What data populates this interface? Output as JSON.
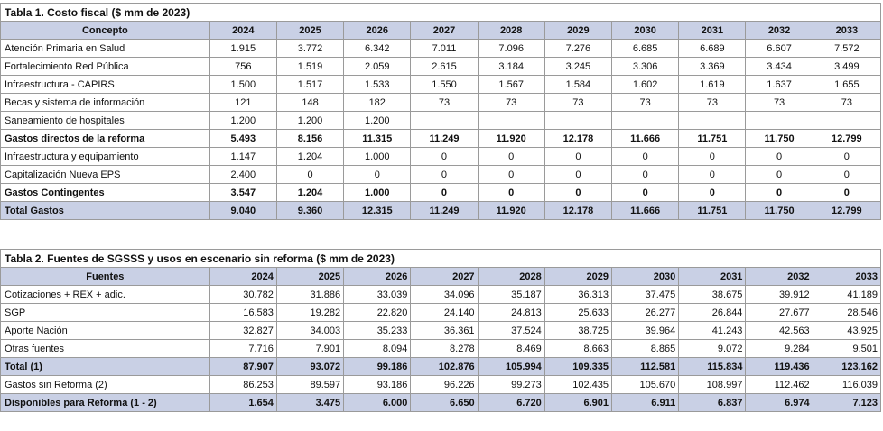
{
  "table1": {
    "title": "Tabla 1. Costo fiscal ($ mm de 2023)",
    "concept_header": "Concepto",
    "years": [
      "2024",
      "2025",
      "2026",
      "2027",
      "2028",
      "2029",
      "2030",
      "2031",
      "2032",
      "2033"
    ],
    "rows": [
      {
        "label": "Atención Primaria en Salud",
        "values": [
          "1.915",
          "3.772",
          "6.342",
          "7.011",
          "7.096",
          "7.276",
          "6.685",
          "6.689",
          "6.607",
          "7.572"
        ],
        "style": "normal"
      },
      {
        "label": "Fortalecimiento Red Pública",
        "values": [
          "756",
          "1.519",
          "2.059",
          "2.615",
          "3.184",
          "3.245",
          "3.306",
          "3.369",
          "3.434",
          "3.499"
        ],
        "style": "normal"
      },
      {
        "label": "Infraestructura - CAPIRS",
        "values": [
          "1.500",
          "1.517",
          "1.533",
          "1.550",
          "1.567",
          "1.584",
          "1.602",
          "1.619",
          "1.637",
          "1.655"
        ],
        "style": "normal"
      },
      {
        "label": "Becas y sistema de información",
        "values": [
          "121",
          "148",
          "182",
          "73",
          "73",
          "73",
          "73",
          "73",
          "73",
          "73"
        ],
        "style": "normal"
      },
      {
        "label": "Saneamiento de hospitales",
        "values": [
          "1.200",
          "1.200",
          "1.200",
          "",
          "",
          "",
          "",
          "",
          "",
          ""
        ],
        "style": "normal"
      },
      {
        "label": "Gastos directos de la reforma",
        "values": [
          "5.493",
          "8.156",
          "11.315",
          "11.249",
          "11.920",
          "12.178",
          "11.666",
          "11.751",
          "11.750",
          "12.799"
        ],
        "style": "bold"
      },
      {
        "label": "Infraestructura y equipamiento",
        "values": [
          "1.147",
          "1.204",
          "1.000",
          "0",
          "0",
          "0",
          "0",
          "0",
          "0",
          "0"
        ],
        "style": "normal"
      },
      {
        "label": "Capitalización Nueva EPS",
        "values": [
          "2.400",
          "0",
          "0",
          "0",
          "0",
          "0",
          "0",
          "0",
          "0",
          "0"
        ],
        "style": "normal"
      },
      {
        "label": "Gastos Contingentes",
        "values": [
          "3.547",
          "1.204",
          "1.000",
          "0",
          "0",
          "0",
          "0",
          "0",
          "0",
          "0"
        ],
        "style": "bold"
      },
      {
        "label": "Total Gastos",
        "values": [
          "9.040",
          "9.360",
          "12.315",
          "11.249",
          "11.920",
          "12.178",
          "11.666",
          "11.751",
          "11.750",
          "12.799"
        ],
        "style": "total"
      }
    ]
  },
  "table2": {
    "title": "Tabla 2. Fuentes de SGSSS y usos en escenario sin reforma ($ mm de 2023)",
    "concept_header": "Fuentes",
    "years": [
      "2024",
      "2025",
      "2026",
      "2027",
      "2028",
      "2029",
      "2030",
      "2031",
      "2032",
      "2033"
    ],
    "rows": [
      {
        "label": "Cotizaciones + REX + adic.",
        "values": [
          "30.782",
          "31.886",
          "33.039",
          "34.096",
          "35.187",
          "36.313",
          "37.475",
          "38.675",
          "39.912",
          "41.189"
        ],
        "style": "normal"
      },
      {
        "label": "SGP",
        "values": [
          "16.583",
          "19.282",
          "22.820",
          "24.140",
          "24.813",
          "25.633",
          "26.277",
          "26.844",
          "27.677",
          "28.546"
        ],
        "style": "normal"
      },
      {
        "label": "Aporte Nación",
        "values": [
          "32.827",
          "34.003",
          "35.233",
          "36.361",
          "37.524",
          "38.725",
          "39.964",
          "41.243",
          "42.563",
          "43.925"
        ],
        "style": "normal"
      },
      {
        "label": "Otras fuentes",
        "values": [
          "7.716",
          "7.901",
          "8.094",
          "8.278",
          "8.469",
          "8.663",
          "8.865",
          "9.072",
          "9.284",
          "9.501"
        ],
        "style": "normal"
      },
      {
        "label": "Total (1)",
        "values": [
          "87.907",
          "93.072",
          "99.186",
          "102.876",
          "105.994",
          "109.335",
          "112.581",
          "115.834",
          "119.436",
          "123.162"
        ],
        "style": "total"
      },
      {
        "label": "Gastos sin Reforma (2)",
        "values": [
          "86.253",
          "89.597",
          "93.186",
          "96.226",
          "99.273",
          "102.435",
          "105.670",
          "108.997",
          "112.462",
          "116.039"
        ],
        "style": "normal"
      },
      {
        "label": "Disponibles para Reforma (1 - 2)",
        "values": [
          "1.654",
          "3.475",
          "6.000",
          "6.650",
          "6.720",
          "6.901",
          "6.911",
          "6.837",
          "6.974",
          "7.123"
        ],
        "style": "total"
      }
    ]
  }
}
